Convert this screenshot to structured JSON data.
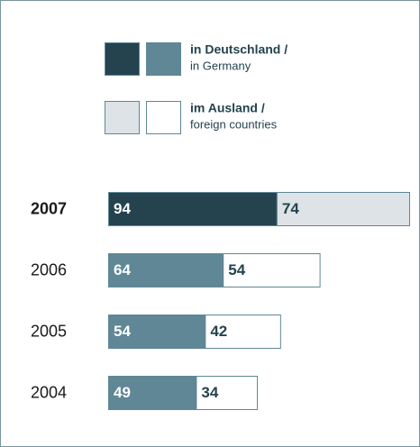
{
  "chart_data": {
    "type": "stacked-bar-horizontal",
    "categories": [
      "2007",
      "2006",
      "2005",
      "2004"
    ],
    "highlight": "2007",
    "series": [
      {
        "name": "in Deutschland /",
        "name_second_line": "in Germany",
        "color": "#5f8796",
        "highlight_color": "#24434f",
        "label_color": "#ffffff",
        "values": [
          94,
          64,
          54,
          49
        ]
      },
      {
        "name": "im Ausland /",
        "name_second_line": "foreign countries",
        "color": "#ffffff",
        "highlight_color": "#dde3e6",
        "label_color": "#24434f",
        "values": [
          74,
          54,
          42,
          34
        ]
      }
    ]
  }
}
